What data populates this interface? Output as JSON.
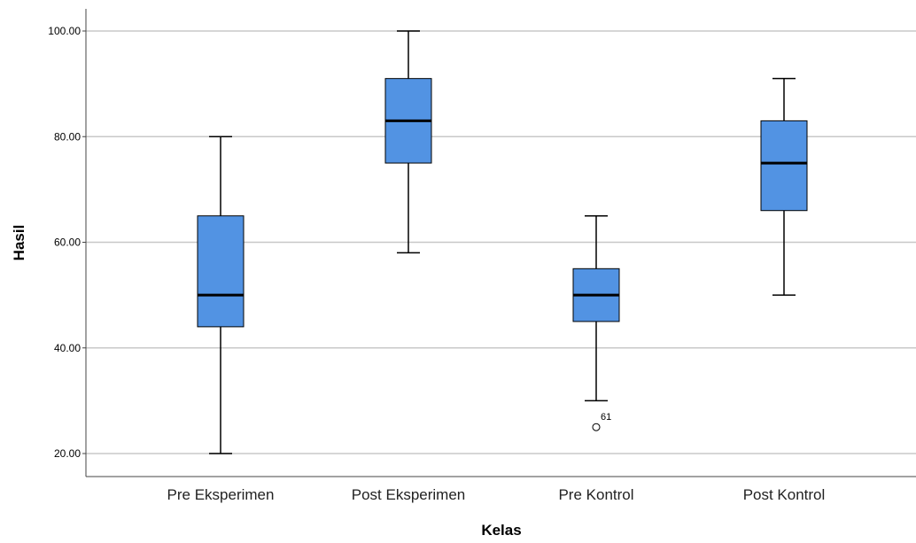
{
  "chart_data": {
    "type": "boxplot",
    "xlabel": "Kelas",
    "ylabel": "Hasil",
    "ylim": [
      15,
      105
    ],
    "yticks": [
      20,
      40,
      60,
      80,
      100
    ],
    "ytick_labels": [
      "20.00",
      "40.00",
      "60.00",
      "80.00",
      "100.00"
    ],
    "grid": "horizontal",
    "box_color": "#5293e3",
    "categories": [
      "Pre Eksperimen",
      "Post Eksperimen",
      "Pre Kontrol",
      "Post Kontrol"
    ],
    "boxes": [
      {
        "category": "Pre Eksperimen",
        "min": 20,
        "q1": 44,
        "median": 50,
        "q3": 65,
        "max": 80,
        "outliers": []
      },
      {
        "category": "Post Eksperimen",
        "min": 58,
        "q1": 75,
        "median": 83,
        "q3": 91,
        "max": 100,
        "outliers": []
      },
      {
        "category": "Pre Kontrol",
        "min": 30,
        "q1": 45,
        "median": 50,
        "q3": 55,
        "max": 65,
        "outliers": [
          {
            "value": 25,
            "label": "61"
          }
        ]
      },
      {
        "category": "Post Kontrol",
        "min": 50,
        "q1": 66,
        "median": 75,
        "q3": 83,
        "max": 91,
        "outliers": []
      }
    ]
  }
}
